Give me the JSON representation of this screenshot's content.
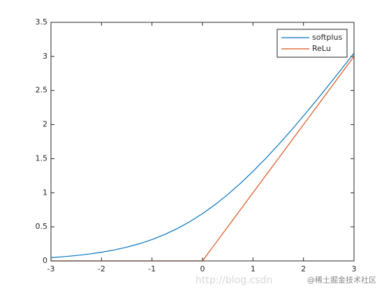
{
  "chart_data": {
    "type": "line",
    "x": [
      -3,
      -2.75,
      -2.5,
      -2.25,
      -2,
      -1.75,
      -1.5,
      -1.25,
      -1,
      -0.75,
      -0.5,
      -0.25,
      0,
      0.25,
      0.5,
      0.75,
      1,
      1.25,
      1.5,
      1.75,
      2,
      2.25,
      2.5,
      2.75,
      3
    ],
    "series": [
      {
        "name": "softplus",
        "color": "#0072bd",
        "values": [
          0.0486,
          0.0619,
          0.0789,
          0.1002,
          0.1269,
          0.1602,
          0.2014,
          0.2519,
          0.3133,
          0.3868,
          0.4741,
          0.576,
          0.6931,
          0.826,
          0.9741,
          1.1368,
          1.3133,
          1.5019,
          1.7014,
          1.9102,
          2.1269,
          2.3502,
          2.5789,
          2.8119,
          3.0486
        ]
      },
      {
        "name": "ReLu",
        "color": "#d95319",
        "values": [
          0,
          0,
          0,
          0,
          0,
          0,
          0,
          0,
          0,
          0,
          0,
          0,
          0,
          0.25,
          0.5,
          0.75,
          1,
          1.25,
          1.5,
          1.75,
          2,
          2.25,
          2.5,
          2.75,
          3
        ]
      }
    ],
    "xlim": [
      -3,
      3
    ],
    "xticks": [
      -3,
      -2,
      -1,
      0,
      1,
      2,
      3
    ],
    "ylim": [
      0,
      3.5
    ],
    "yticks": [
      0,
      0.5,
      1,
      1.5,
      2,
      2.5,
      3,
      3.5
    ],
    "legend": "top-right",
    "watermarks": [
      "http://blog.csdn",
      "@稀土掘金技术社区"
    ]
  }
}
